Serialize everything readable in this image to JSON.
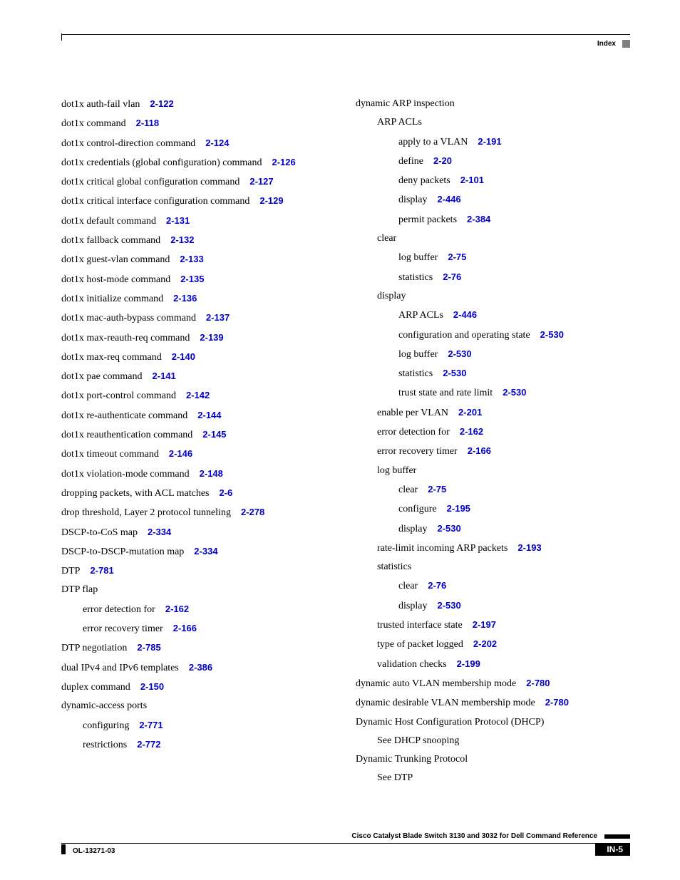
{
  "header": {
    "label": "Index"
  },
  "link_color": "#0000cc",
  "left_column": [
    {
      "text": "dot1x auth-fail vlan",
      "ref": "2-122",
      "indent": 0
    },
    {
      "text": "dot1x command",
      "ref": "2-118",
      "indent": 0
    },
    {
      "text": "dot1x control-direction command",
      "ref": "2-124",
      "indent": 0
    },
    {
      "text": "dot1x credentials (global configuration) command",
      "ref": "2-126",
      "indent": 0
    },
    {
      "text": "dot1x critical global configuration command",
      "ref": "2-127",
      "indent": 0
    },
    {
      "text": "dot1x critical interface configuration command",
      "ref": "2-129",
      "indent": 0
    },
    {
      "text": "dot1x default command",
      "ref": "2-131",
      "indent": 0
    },
    {
      "text": "dot1x fallback command",
      "ref": "2-132",
      "indent": 0
    },
    {
      "text": "dot1x guest-vlan command",
      "ref": "2-133",
      "indent": 0
    },
    {
      "text": "dot1x host-mode command",
      "ref": "2-135",
      "indent": 0
    },
    {
      "text": "dot1x initialize command",
      "ref": "2-136",
      "indent": 0
    },
    {
      "text": "dot1x mac-auth-bypass command",
      "ref": "2-137",
      "indent": 0
    },
    {
      "text": "dot1x max-reauth-req command",
      "ref": "2-139",
      "indent": 0
    },
    {
      "text": "dot1x max-req command",
      "ref": "2-140",
      "indent": 0
    },
    {
      "text": "dot1x pae command",
      "ref": "2-141",
      "indent": 0
    },
    {
      "text": "dot1x port-control command",
      "ref": "2-142",
      "indent": 0
    },
    {
      "text": "dot1x re-authenticate command",
      "ref": "2-144",
      "indent": 0
    },
    {
      "text": "dot1x reauthentication command",
      "ref": "2-145",
      "indent": 0
    },
    {
      "text": "dot1x timeout command",
      "ref": "2-146",
      "indent": 0
    },
    {
      "text": "dot1x violation-mode command",
      "ref": "2-148",
      "indent": 0
    },
    {
      "text": "dropping packets, with ACL matches",
      "ref": "2-6",
      "indent": 0
    },
    {
      "text": "drop threshold, Layer 2 protocol tunneling",
      "ref": "2-278",
      "indent": 0
    },
    {
      "text": "DSCP-to-CoS map",
      "ref": "2-334",
      "indent": 0
    },
    {
      "text": "DSCP-to-DSCP-mutation map",
      "ref": "2-334",
      "indent": 0
    },
    {
      "text": "DTP",
      "ref": "2-781",
      "indent": 0
    },
    {
      "text": "DTP flap",
      "ref": "",
      "indent": 0
    },
    {
      "text": "error detection for",
      "ref": "2-162",
      "indent": 1
    },
    {
      "text": "error recovery timer",
      "ref": "2-166",
      "indent": 1
    },
    {
      "text": "DTP negotiation",
      "ref": "2-785",
      "indent": 0
    },
    {
      "text": "dual IPv4 and IPv6 templates",
      "ref": "2-386",
      "indent": 0
    },
    {
      "text": "duplex command",
      "ref": "2-150",
      "indent": 0
    },
    {
      "text": "dynamic-access ports",
      "ref": "",
      "indent": 0
    },
    {
      "text": "configuring",
      "ref": "2-771",
      "indent": 1
    },
    {
      "text": "restrictions",
      "ref": "2-772",
      "indent": 1
    }
  ],
  "right_column": [
    {
      "text": "dynamic ARP inspection",
      "ref": "",
      "indent": 0
    },
    {
      "text": "ARP ACLs",
      "ref": "",
      "indent": 1
    },
    {
      "text": "apply to a VLAN",
      "ref": "2-191",
      "indent": 2
    },
    {
      "text": "define",
      "ref": "2-20",
      "indent": 2
    },
    {
      "text": "deny packets",
      "ref": "2-101",
      "indent": 2
    },
    {
      "text": "display",
      "ref": "2-446",
      "indent": 2
    },
    {
      "text": "permit packets",
      "ref": "2-384",
      "indent": 2
    },
    {
      "text": "clear",
      "ref": "",
      "indent": 1
    },
    {
      "text": "log buffer",
      "ref": "2-75",
      "indent": 2
    },
    {
      "text": "statistics",
      "ref": "2-76",
      "indent": 2
    },
    {
      "text": "display",
      "ref": "",
      "indent": 1
    },
    {
      "text": "ARP ACLs",
      "ref": "2-446",
      "indent": 2
    },
    {
      "text": "configuration and operating state",
      "ref": "2-530",
      "indent": 2
    },
    {
      "text": "log buffer",
      "ref": "2-530",
      "indent": 2
    },
    {
      "text": "statistics",
      "ref": "2-530",
      "indent": 2
    },
    {
      "text": "trust state and rate limit",
      "ref": "2-530",
      "indent": 2
    },
    {
      "text": "enable per VLAN",
      "ref": "2-201",
      "indent": 1
    },
    {
      "text": "error detection for",
      "ref": "2-162",
      "indent": 1
    },
    {
      "text": "error recovery timer",
      "ref": "2-166",
      "indent": 1
    },
    {
      "text": "log buffer",
      "ref": "",
      "indent": 1
    },
    {
      "text": "clear",
      "ref": "2-75",
      "indent": 2
    },
    {
      "text": "configure",
      "ref": "2-195",
      "indent": 2
    },
    {
      "text": "display",
      "ref": "2-530",
      "indent": 2
    },
    {
      "text": "rate-limit incoming ARP packets",
      "ref": "2-193",
      "indent": 1
    },
    {
      "text": "statistics",
      "ref": "",
      "indent": 1
    },
    {
      "text": "clear",
      "ref": "2-76",
      "indent": 2
    },
    {
      "text": "display",
      "ref": "2-530",
      "indent": 2
    },
    {
      "text": "trusted interface state",
      "ref": "2-197",
      "indent": 1
    },
    {
      "text": "type of packet logged",
      "ref": "2-202",
      "indent": 1
    },
    {
      "text": "validation checks",
      "ref": "2-199",
      "indent": 1
    },
    {
      "text": "dynamic auto VLAN membership mode",
      "ref": "2-780",
      "indent": 0
    },
    {
      "text": "dynamic desirable VLAN membership mode",
      "ref": "2-780",
      "indent": 0
    },
    {
      "text": "Dynamic Host Configuration Protocol (DHCP)",
      "ref": "",
      "indent": 0
    },
    {
      "text": "See DHCP snooping",
      "ref": "",
      "indent": 1
    },
    {
      "text": "Dynamic Trunking Protocol",
      "ref": "",
      "indent": 0
    },
    {
      "text": "See DTP",
      "ref": "",
      "indent": 1
    }
  ],
  "footer": {
    "title": "Cisco Catalyst Blade Switch 3130 and 3032 for Dell Command Reference",
    "doc_id": "OL-13271-03",
    "page": "IN-5"
  }
}
